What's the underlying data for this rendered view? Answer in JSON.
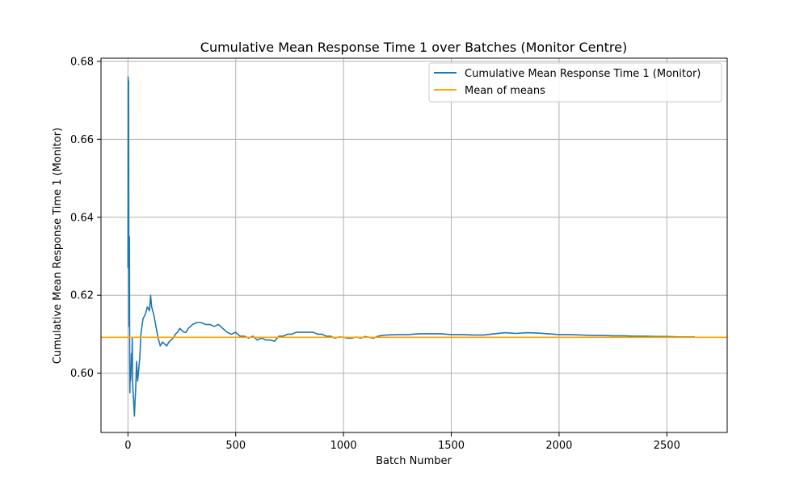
{
  "chart_data": {
    "type": "line",
    "title": "Cumulative Mean Response Time 1 over Batches (Monitor Centre)",
    "xlabel": "Batch Number",
    "ylabel": "Cumulative Mean Response Time 1 (Monitor)",
    "xlim": [
      -125,
      2780
    ],
    "ylim": [
      0.5848,
      0.6808
    ],
    "x_ticks": [
      0,
      500,
      1000,
      1500,
      2000,
      2500
    ],
    "x_tick_labels": [
      "0",
      "500",
      "1000",
      "1500",
      "2000",
      "2500"
    ],
    "y_ticks": [
      0.6,
      0.62,
      0.64,
      0.66,
      0.68
    ],
    "y_tick_labels": [
      "0.60",
      "0.62",
      "0.64",
      "0.66",
      "0.68"
    ],
    "grid": true,
    "legend_position": "top-right",
    "series": [
      {
        "name": "Cumulative Mean Response Time 1 (Monitor)",
        "color": "#1f77b4",
        "x": [
          0,
          1,
          2,
          3,
          4,
          5,
          6,
          7,
          8,
          9,
          10,
          12,
          14,
          16,
          18,
          20,
          22,
          25,
          28,
          30,
          33,
          36,
          40,
          45,
          50,
          55,
          60,
          70,
          80,
          90,
          100,
          105,
          110,
          120,
          130,
          140,
          150,
          160,
          170,
          180,
          190,
          200,
          210,
          220,
          230,
          240,
          250,
          260,
          270,
          280,
          290,
          300,
          320,
          340,
          360,
          380,
          400,
          420,
          440,
          460,
          480,
          500,
          520,
          540,
          560,
          580,
          600,
          620,
          640,
          660,
          680,
          700,
          720,
          740,
          760,
          780,
          800,
          820,
          840,
          860,
          880,
          900,
          920,
          940,
          960,
          980,
          1000,
          1020,
          1040,
          1060,
          1080,
          1100,
          1120,
          1140,
          1160,
          1180,
          1200,
          1250,
          1300,
          1350,
          1400,
          1450,
          1500,
          1550,
          1600,
          1650,
          1700,
          1750,
          1800,
          1850,
          1900,
          1950,
          2000,
          2050,
          2100,
          2150,
          2200,
          2250,
          2300,
          2350,
          2400,
          2450,
          2500,
          2550,
          2600,
          2630
        ],
        "y": [
          0.627,
          0.676,
          0.632,
          0.675,
          0.64,
          0.612,
          0.625,
          0.635,
          0.606,
          0.595,
          0.601,
          0.598,
          0.6,
          0.605,
          0.602,
          0.609,
          0.597,
          0.594,
          0.591,
          0.589,
          0.593,
          0.596,
          0.603,
          0.598,
          0.601,
          0.604,
          0.61,
          0.614,
          0.615,
          0.617,
          0.616,
          0.62,
          0.617,
          0.615,
          0.612,
          0.609,
          0.607,
          0.608,
          0.6075,
          0.607,
          0.608,
          0.6085,
          0.609,
          0.61,
          0.6105,
          0.6115,
          0.611,
          0.6105,
          0.6105,
          0.6115,
          0.612,
          0.6125,
          0.613,
          0.613,
          0.6125,
          0.6125,
          0.612,
          0.6125,
          0.6115,
          0.6105,
          0.61,
          0.6105,
          0.6095,
          0.6095,
          0.609,
          0.6095,
          0.6085,
          0.609,
          0.6085,
          0.6085,
          0.6082,
          0.6095,
          0.6095,
          0.61,
          0.61,
          0.6105,
          0.6105,
          0.6105,
          0.6105,
          0.6105,
          0.61,
          0.61,
          0.6095,
          0.6095,
          0.609,
          0.6093,
          0.6092,
          0.609,
          0.609,
          0.6093,
          0.609,
          0.6094,
          0.6092,
          0.609,
          0.6095,
          0.6097,
          0.6098,
          0.6099,
          0.6099,
          0.6101,
          0.6101,
          0.6101,
          0.6099,
          0.6099,
          0.6098,
          0.6098,
          0.6101,
          0.6104,
          0.6102,
          0.6104,
          0.6103,
          0.6101,
          0.6099,
          0.6099,
          0.6098,
          0.6097,
          0.6097,
          0.6096,
          0.6096,
          0.6095,
          0.6095,
          0.6094,
          0.6094,
          0.6093,
          0.6093,
          0.6093
        ]
      },
      {
        "name": "Mean of means",
        "color": "#ffa500",
        "type": "hline",
        "y": 0.6092
      }
    ]
  }
}
